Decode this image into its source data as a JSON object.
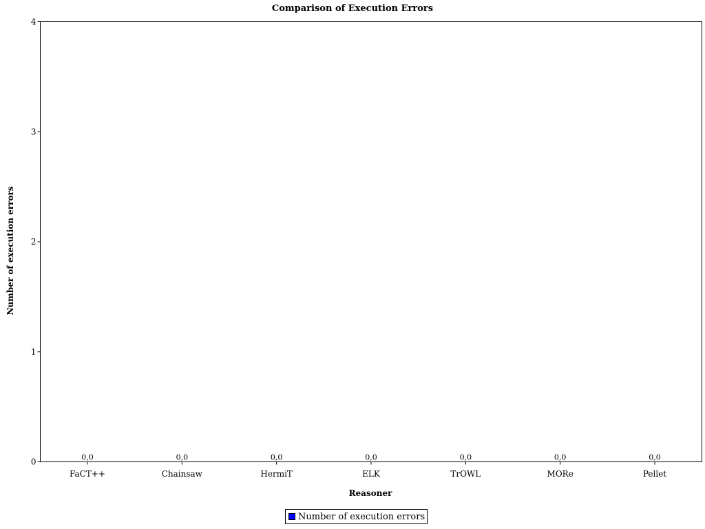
{
  "chart_data": {
    "type": "bar",
    "title": "Comparison of Execution Errors",
    "xlabel": "Reasoner",
    "ylabel": "Number of execution errors",
    "categories": [
      "FaCT++",
      "Chainsaw",
      "HermiT",
      "ELK",
      "TrOWL",
      "MORe",
      "Pellet"
    ],
    "series": [
      {
        "name": "Number of execution errors",
        "values": [
          0,
          0,
          0,
          0,
          0,
          0,
          0
        ],
        "labels": [
          "0,0",
          "0,0",
          "0,0",
          "0,0",
          "0,0",
          "0,0",
          "0,0"
        ],
        "color": "#0000ff"
      }
    ],
    "ylim": [
      0,
      4
    ],
    "yticks": [
      "0",
      "1",
      "2",
      "3",
      "4"
    ],
    "grid": false,
    "legend_position": "bottom-center"
  }
}
